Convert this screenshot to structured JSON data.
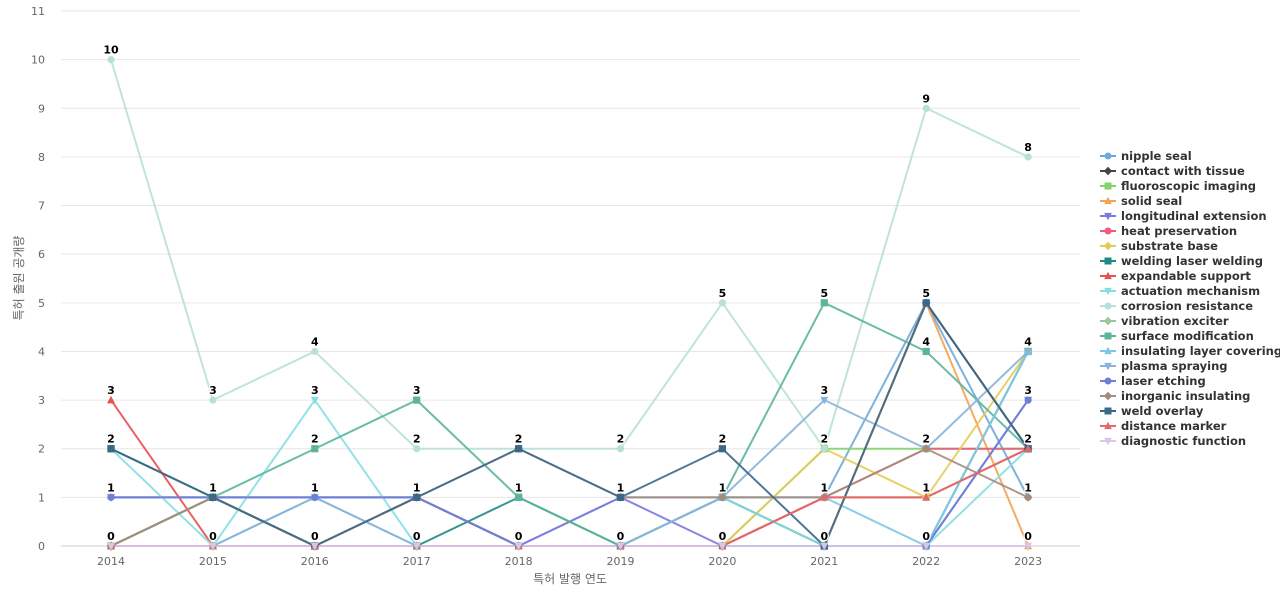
{
  "chart_data": {
    "type": "line",
    "title": "",
    "xlabel": "특허 발행 연도",
    "ylabel": "특허 출원 공개량",
    "ylim": [
      0,
      11
    ],
    "yticks": [
      0,
      1,
      2,
      3,
      4,
      5,
      6,
      7,
      8,
      9,
      10,
      11
    ],
    "grid": true,
    "legend_position": "right",
    "categories": [
      "2014",
      "2015",
      "2016",
      "2017",
      "2018",
      "2019",
      "2020",
      "2021",
      "2022",
      "2023"
    ],
    "series": [
      {
        "name": "nipple seal",
        "color": "#6fa8dc",
        "marker": "circle",
        "values": [
          1,
          1,
          1,
          1,
          0,
          1,
          1,
          1,
          5,
          1
        ]
      },
      {
        "name": "contact with tissue",
        "color": "#444444",
        "marker": "diamond",
        "values": [
          0,
          1,
          0,
          1,
          0,
          0,
          0,
          0,
          5,
          2
        ]
      },
      {
        "name": "fluoroscopic imaging",
        "color": "#82d46d",
        "marker": "square",
        "values": [
          0,
          0,
          0,
          0,
          0,
          0,
          0,
          2,
          2,
          2
        ]
      },
      {
        "name": "solid seal",
        "color": "#f3a352",
        "marker": "triangle-up",
        "values": [
          0,
          1,
          0,
          1,
          0,
          0,
          1,
          0,
          5,
          0
        ]
      },
      {
        "name": "longitudinal extension",
        "color": "#7b78e0",
        "marker": "triangle-down",
        "values": [
          1,
          1,
          1,
          1,
          0,
          1,
          0,
          0,
          0,
          3
        ]
      },
      {
        "name": "heat preservation",
        "color": "#ec5b80",
        "marker": "circle",
        "values": [
          0,
          0,
          0,
          0,
          0,
          0,
          0,
          1,
          2,
          2
        ]
      },
      {
        "name": "substrate base",
        "color": "#e3cc55",
        "marker": "diamond",
        "values": [
          0,
          0,
          0,
          0,
          0,
          0,
          0,
          2,
          1,
          4
        ]
      },
      {
        "name": "welding laser welding",
        "color": "#1e8a83",
        "marker": "square",
        "values": [
          2,
          1,
          0,
          0,
          1,
          0,
          1,
          0,
          0,
          4
        ]
      },
      {
        "name": "expandable support",
        "color": "#e8514f",
        "marker": "triangle-up",
        "values": [
          3,
          0,
          0,
          0,
          0,
          0,
          0,
          1,
          1,
          2
        ]
      },
      {
        "name": "actuation mechanism",
        "color": "#86dee3",
        "marker": "triangle-down",
        "values": [
          2,
          0,
          3,
          0,
          0,
          0,
          1,
          0,
          0,
          2
        ]
      },
      {
        "name": "corrosion resistance",
        "color": "#b9e0d6",
        "marker": "circle",
        "values": [
          10,
          3,
          4,
          2,
          2,
          2,
          5,
          2,
          9,
          8
        ]
      },
      {
        "name": "vibration exciter",
        "color": "#9bc79a",
        "marker": "diamond",
        "values": [
          0,
          0,
          0,
          0,
          0,
          0,
          0,
          0,
          0,
          4
        ]
      },
      {
        "name": "surface modification",
        "color": "#5ab59b",
        "marker": "square",
        "values": [
          0,
          1,
          2,
          3,
          1,
          0,
          1,
          5,
          4,
          2
        ]
      },
      {
        "name": "insulating layer covering",
        "color": "#7cc8e8",
        "marker": "triangle-up",
        "values": [
          0,
          0,
          1,
          0,
          0,
          0,
          1,
          1,
          0,
          4
        ]
      },
      {
        "name": "plasma spraying",
        "color": "#88b4d9",
        "marker": "triangle-down",
        "values": [
          0,
          0,
          1,
          0,
          0,
          0,
          1,
          3,
          2,
          4
        ]
      },
      {
        "name": "laser etching",
        "color": "#6d7fd6",
        "marker": "circle",
        "values": [
          1,
          1,
          1,
          1,
          0,
          0,
          0,
          0,
          0,
          3
        ]
      },
      {
        "name": "inorganic insulating",
        "color": "#a58b7c",
        "marker": "diamond",
        "values": [
          0,
          1,
          0,
          1,
          2,
          1,
          1,
          1,
          2,
          1
        ]
      },
      {
        "name": "weld overlay",
        "color": "#3c6888",
        "marker": "square",
        "values": [
          2,
          1,
          0,
          1,
          2,
          1,
          2,
          0,
          5,
          2
        ]
      },
      {
        "name": "distance marker",
        "color": "#e06a6a",
        "marker": "triangle-up",
        "values": [
          0,
          0,
          0,
          0,
          0,
          0,
          0,
          1,
          1,
          2
        ]
      },
      {
        "name": "diagnostic function",
        "color": "#d9c5e8",
        "marker": "triangle-down",
        "values": [
          0,
          0,
          0,
          0,
          0,
          0,
          0,
          0,
          0,
          0
        ]
      }
    ],
    "data_labels": [
      {
        "category": "2014",
        "values": [
          10,
          3,
          2,
          1,
          0
        ]
      },
      {
        "category": "2015",
        "values": [
          3,
          1,
          0
        ]
      },
      {
        "category": "2016",
        "values": [
          4,
          3,
          2,
          1,
          0
        ]
      },
      {
        "category": "2017",
        "values": [
          3,
          2,
          1,
          0
        ]
      },
      {
        "category": "2018",
        "values": [
          2,
          1,
          0
        ]
      },
      {
        "category": "2019",
        "values": [
          2,
          1,
          0
        ]
      },
      {
        "category": "2020",
        "values": [
          5,
          2,
          1,
          0
        ]
      },
      {
        "category": "2021",
        "values": [
          5,
          3,
          2,
          1,
          0
        ]
      },
      {
        "category": "2022",
        "values": [
          9,
          5,
          4,
          2,
          1,
          0
        ]
      },
      {
        "category": "2023",
        "values": [
          8,
          4,
          3,
          2,
          1,
          0
        ]
      }
    ]
  }
}
